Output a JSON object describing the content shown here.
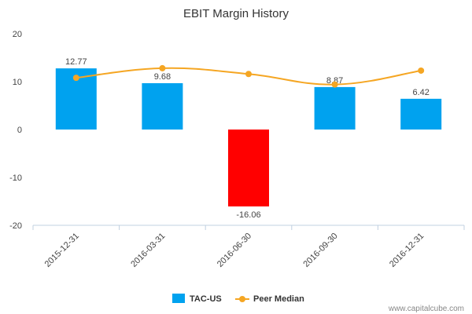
{
  "chart_data": {
    "type": "bar",
    "title": "EBIT Margin History",
    "categories": [
      "2015-12-31",
      "2016-03-31",
      "2016-06-30",
      "2016-09-30",
      "2016-12-31"
    ],
    "series": [
      {
        "name": "TAC-US",
        "kind": "bar",
        "values": [
          12.77,
          9.68,
          -16.06,
          8.87,
          6.42
        ],
        "data_labels": [
          "12.77",
          "9.68",
          "-16.06",
          "8.87",
          "6.42"
        ],
        "color": "#00a2ef",
        "negative_color": "#ff0000"
      },
      {
        "name": "Peer Median",
        "kind": "line",
        "values": [
          10.8,
          12.8,
          11.6,
          9.4,
          12.3
        ],
        "color": "#f5a623"
      }
    ],
    "ylim": [
      -20,
      20
    ],
    "yticks": [
      "20",
      "10",
      "0",
      "-10",
      "-20"
    ],
    "grid": false,
    "legend": "bottom-center"
  },
  "credit": "www.capitalcube.com"
}
